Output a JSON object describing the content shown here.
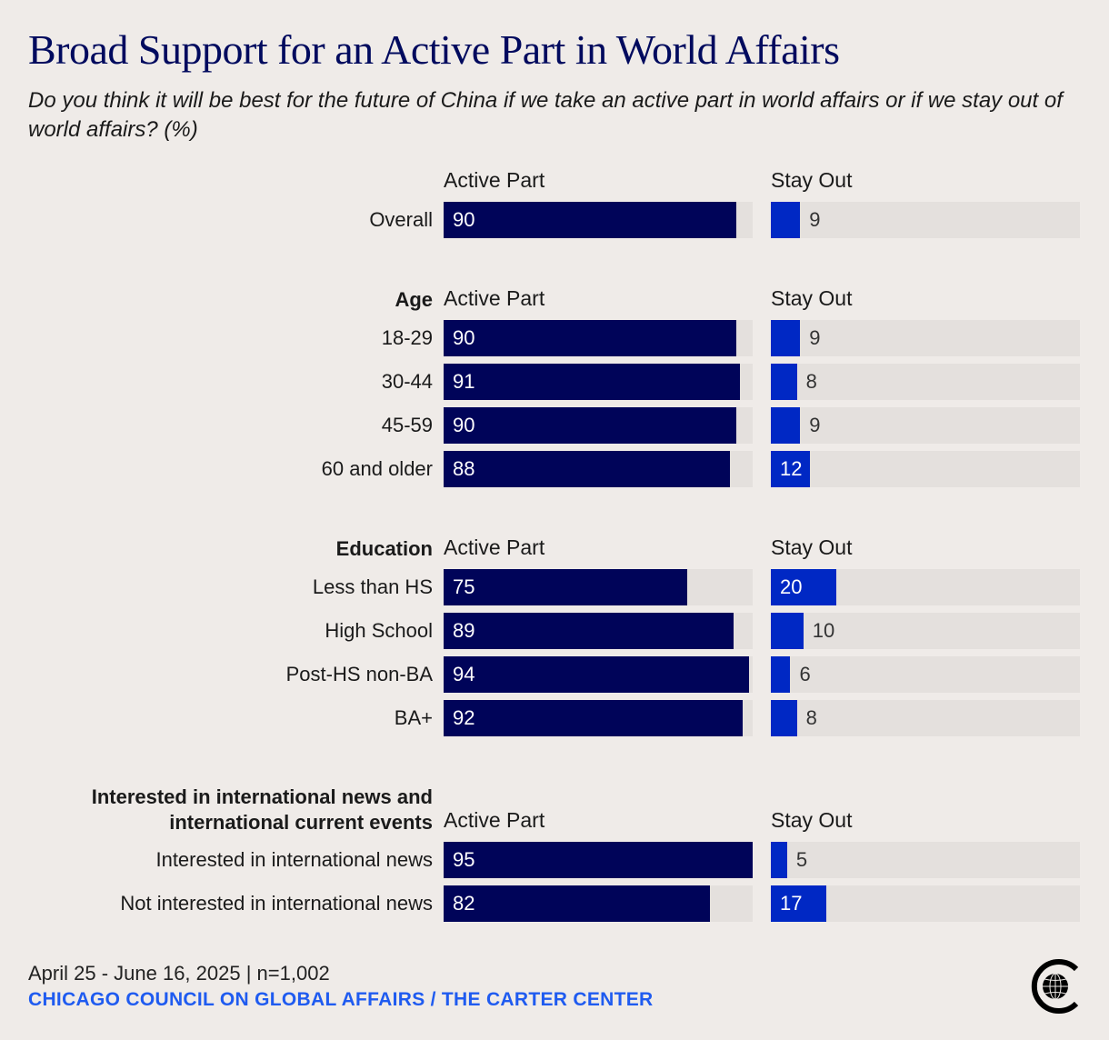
{
  "chart_data": {
    "type": "bar",
    "orientation": "horizontal",
    "title": "Broad Support for an Active Part in World Affairs",
    "subtitle": "Do you think it will be best for the future of China if we take an active part in world affairs or if we stay out of world affairs? (%)",
    "xlim": [
      0,
      95
    ],
    "series_names": [
      "Active Part",
      "Stay Out"
    ],
    "colors": {
      "active": "#000459",
      "stay": "#0028c4",
      "track": "#e4e0dd"
    },
    "groups": [
      {
        "header": "",
        "rows": [
          {
            "label": "Overall",
            "active": 90,
            "stay": 9
          }
        ]
      },
      {
        "header": "Age",
        "rows": [
          {
            "label": "18-29",
            "active": 90,
            "stay": 9
          },
          {
            "label": "30-44",
            "active": 91,
            "stay": 8
          },
          {
            "label": "45-59",
            "active": 90,
            "stay": 9
          },
          {
            "label": "60 and older",
            "active": 88,
            "stay": 12
          }
        ]
      },
      {
        "header": "Education",
        "rows": [
          {
            "label": "Less than HS",
            "active": 75,
            "stay": 20
          },
          {
            "label": "High School",
            "active": 89,
            "stay": 10
          },
          {
            "label": "Post-HS non-BA",
            "active": 94,
            "stay": 6
          },
          {
            "label": "BA+",
            "active": 92,
            "stay": 8
          }
        ]
      },
      {
        "header": "Interested in international news and international current events",
        "header_lines": [
          "Interested in international news and",
          "international current events"
        ],
        "rows": [
          {
            "label": "Interested in international news",
            "active": 95,
            "stay": 5
          },
          {
            "label": "Not interested in international news",
            "active": 82,
            "stay": 17
          }
        ]
      }
    ]
  },
  "footer": {
    "date_sample": "April 25 - June 16, 2025 | n=1,002",
    "source": "CHICAGO COUNCIL ON GLOBAL AFFAIRS / THE CARTER CENTER"
  },
  "logo": {
    "icon": "chicago-council-globe-logo"
  }
}
